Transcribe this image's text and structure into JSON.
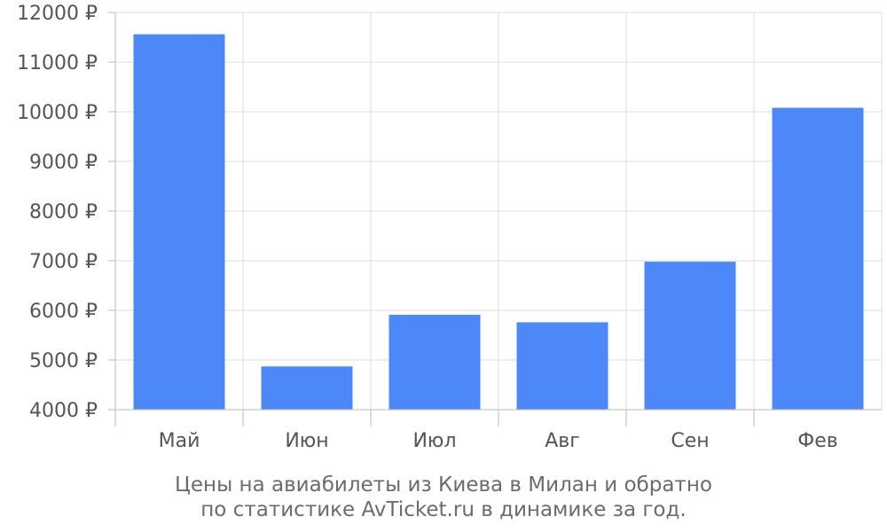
{
  "chart_data": {
    "type": "bar",
    "categories": [
      "Май",
      "Июн",
      "Июл",
      "Авг",
      "Сен",
      "Фев"
    ],
    "values": [
      11560,
      4870,
      5910,
      5760,
      6980,
      10080
    ],
    "ylim": [
      4000,
      12000
    ],
    "yticks": [
      "4000 ₽",
      "5000 ₽",
      "6000 ₽",
      "7000 ₽",
      "8000 ₽",
      "9000 ₽",
      "10000 ₽",
      "11000 ₽",
      "12000 ₽"
    ],
    "ytick_values": [
      4000,
      5000,
      6000,
      7000,
      8000,
      9000,
      10000,
      11000,
      12000
    ],
    "grid": true,
    "bar_color": "#4d88f9",
    "caption": [
      "Цены на авиабилеты из Киева в Милан и обратно",
      "по статистике AvTicket.ru в динамике за год."
    ]
  }
}
